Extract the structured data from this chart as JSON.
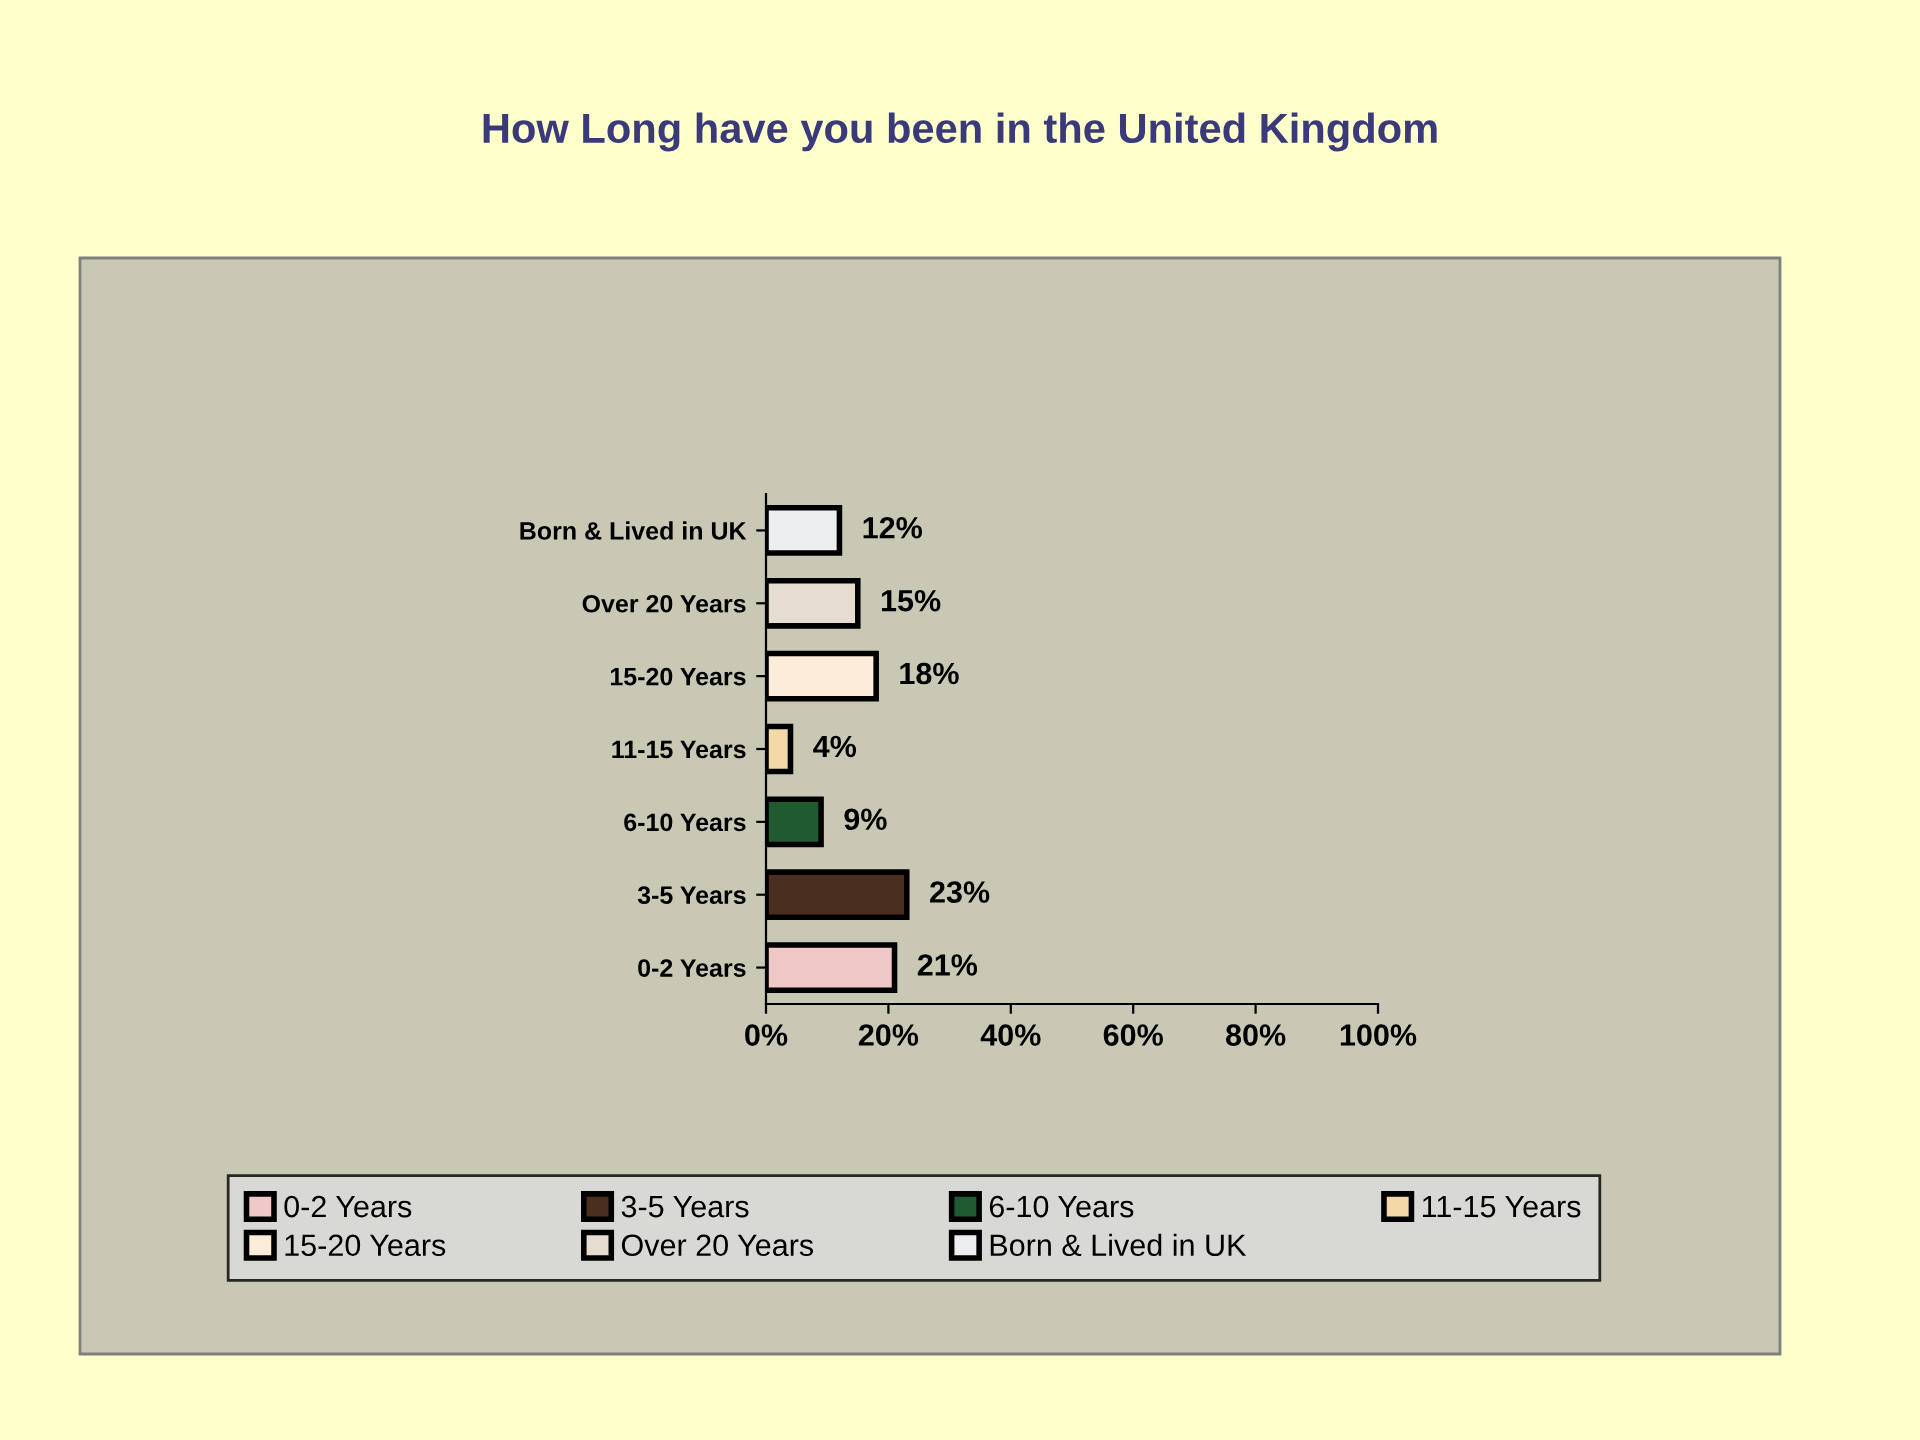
{
  "chart_data": {
    "type": "bar",
    "orientation": "horizontal",
    "title": "How Long have you been in the United Kingdom",
    "categories": [
      "Born & Lived in UK",
      "Over 20 Years",
      "15-20 Years",
      "11-15 Years",
      "6-10 Years",
      "3-5 Years",
      "0-2 Years"
    ],
    "series": [
      {
        "name": "0-2 Years",
        "color": "#f0c8c8",
        "values": [
          null,
          null,
          null,
          null,
          null,
          null,
          21
        ],
        "value_labels": [
          null,
          null,
          null,
          null,
          null,
          null,
          "21%"
        ]
      },
      {
        "name": "3-5 Years",
        "color": "#4a2e1e",
        "values": [
          null,
          null,
          null,
          null,
          null,
          23,
          null
        ],
        "value_labels": [
          null,
          null,
          null,
          null,
          null,
          "23%",
          null
        ]
      },
      {
        "name": "6-10 Years",
        "color": "#1f5a30",
        "values": [
          null,
          null,
          null,
          null,
          9,
          null,
          null
        ],
        "value_labels": [
          null,
          null,
          null,
          null,
          "9%",
          null,
          null
        ]
      },
      {
        "name": "11-15 Years",
        "color": "#f4d9a8",
        "values": [
          null,
          null,
          null,
          4,
          null,
          null,
          null
        ],
        "value_labels": [
          null,
          null,
          null,
          "4%",
          null,
          null,
          null
        ]
      },
      {
        "name": "15-20 Years",
        "color": "#fcecd8",
        "values": [
          null,
          null,
          18,
          null,
          null,
          null,
          null
        ],
        "value_labels": [
          null,
          null,
          "18%",
          null,
          null,
          null,
          null
        ]
      },
      {
        "name": "Over 20 Years",
        "color": "#e6dcd0",
        "values": [
          null,
          15,
          null,
          null,
          null,
          null,
          null
        ],
        "value_labels": [
          null,
          "15%",
          null,
          null,
          null,
          null,
          null
        ]
      },
      {
        "name": "Born & Lived in UK",
        "color": "#eceef0",
        "values": [
          12,
          null,
          null,
          null,
          null,
          null,
          null
        ],
        "value_labels": [
          "12%",
          null,
          null,
          null,
          null,
          null,
          null
        ]
      }
    ],
    "xlim": [
      0,
      100
    ],
    "xticks": [
      {
        "value": 0,
        "label": "0%"
      },
      {
        "value": 20,
        "label": "20%"
      },
      {
        "value": 40,
        "label": "40%"
      },
      {
        "value": 60,
        "label": "60%"
      },
      {
        "value": 80,
        "label": "80%"
      },
      {
        "value": 100,
        "label": "100%"
      }
    ],
    "legend": "bottom",
    "grid": false
  }
}
